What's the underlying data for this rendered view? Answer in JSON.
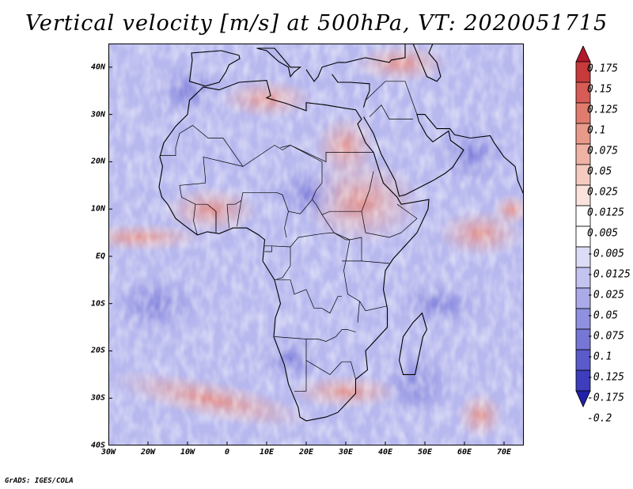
{
  "title": "Vertical velocity [m/s] at 500hPa, VT: 2020051715",
  "credit": "GrADS: IGES/COLA",
  "lat_ticks": [
    "40N",
    "30N",
    "20N",
    "10N",
    "EQ",
    "10S",
    "20S",
    "30S",
    "40S"
  ],
  "lat_values": [
    40,
    30,
    20,
    10,
    0,
    -10,
    -20,
    -30,
    -40
  ],
  "lon_ticks": [
    "30W",
    "20W",
    "10W",
    "0",
    "10E",
    "20E",
    "30E",
    "40E",
    "50E",
    "60E",
    "70E"
  ],
  "lon_values": [
    -30,
    -20,
    -10,
    0,
    10,
    20,
    30,
    40,
    50,
    60,
    70
  ],
  "lon_range": [
    -30,
    75
  ],
  "lat_range": [
    -40,
    45
  ],
  "colorbar": {
    "labels": [
      "0.175",
      "0.15",
      "0.125",
      "0.1",
      "0.075",
      "0.05",
      "0.025",
      "0.0125",
      "0.005",
      "-0.005",
      "-0.0125",
      "-0.025",
      "-0.05",
      "-0.075",
      "-0.1",
      "-0.125",
      "-0.175",
      "-0.2"
    ],
    "colors": [
      "#b2182b",
      "#c73a3a",
      "#d65c55",
      "#e07c6e",
      "#e89a8a",
      "#efb3a5",
      "#f5cbc0",
      "#fbe2dc",
      "#ffffff",
      "#ffffff",
      "#dcdcf7",
      "#c3c3f0",
      "#aaaae8",
      "#9090e0",
      "#7676d6",
      "#5a5acb",
      "#3d3dbd",
      "#2020a8"
    ]
  }
}
